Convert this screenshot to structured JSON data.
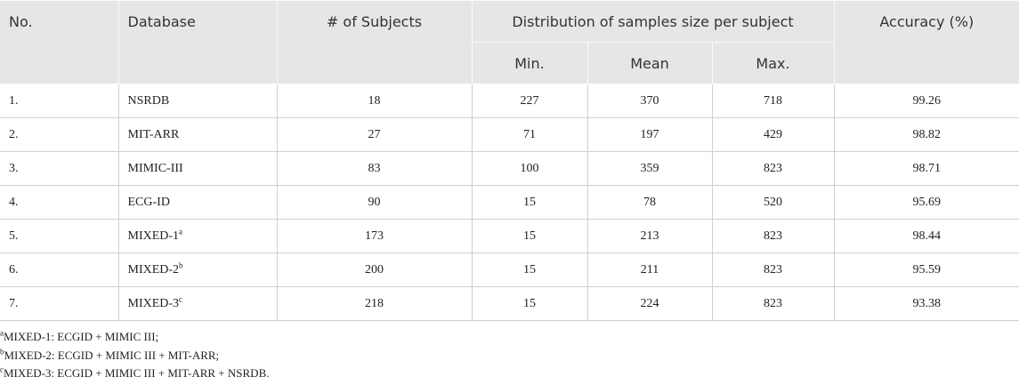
{
  "table": {
    "header": {
      "no": "No.",
      "database": "Database",
      "subjects": "# of Subjects",
      "distribution": "Distribution of samples size per subject",
      "min": "Min.",
      "mean": "Mean",
      "max": "Max.",
      "accuracy": "Accuracy (%)"
    },
    "rows": [
      {
        "no": "1.",
        "database": "NSRDB",
        "subjects": 18,
        "min": 227,
        "mean": 370,
        "max": 718,
        "accuracy": 99.26
      },
      {
        "no": "2.",
        "database": "MIT-ARR",
        "subjects": 27,
        "min": 71,
        "mean": 197,
        "max": 429,
        "accuracy": 98.82
      },
      {
        "no": "3.",
        "database": "MIMIC-III",
        "subjects": 83,
        "min": 100,
        "mean": 359,
        "max": 823,
        "accuracy": 98.71
      },
      {
        "no": "4.",
        "database": "ECG-ID",
        "subjects": 90,
        "min": 15,
        "mean": 78,
        "max": 520,
        "accuracy": 95.69
      },
      {
        "no": "5.",
        "database": "MIXED-1",
        "note": "a",
        "subjects": 173,
        "min": 15,
        "mean": 213,
        "max": 823,
        "accuracy": 98.44
      },
      {
        "no": "6.",
        "database": "MIXED-2",
        "note": "b",
        "subjects": 200,
        "min": 15,
        "mean": 211,
        "max": 823,
        "accuracy": 95.59
      },
      {
        "no": "7.",
        "database": "MIXED-3",
        "note": "c",
        "subjects": 218,
        "min": 15,
        "mean": 224,
        "max": 823,
        "accuracy": 93.38
      }
    ],
    "footnotes": [
      {
        "mark": "a",
        "text": "MIXED-1: ECGID + MIMIC III;"
      },
      {
        "mark": "b",
        "text": "MIXED-2: ECGID + MIMIC III + MIT-ARR;"
      },
      {
        "mark": "c",
        "text": "MIXED-3: ECGID + MIMIC III + MIT-ARR + NSRDB."
      }
    ]
  }
}
